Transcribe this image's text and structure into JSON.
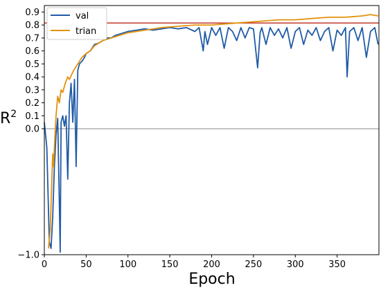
{
  "chart_data": {
    "type": "line",
    "xlabel": "Epoch",
    "ylabel": "R",
    "ylabel_superscript": "2",
    "xlim": [
      0,
      400
    ],
    "ylim": [
      -1.0,
      0.95
    ],
    "x_ticks": [
      0,
      50,
      100,
      150,
      200,
      250,
      300,
      350
    ],
    "y_ticks": [
      -1.0,
      0.0,
      0.1,
      0.2,
      0.3,
      0.4,
      0.5,
      0.6,
      0.7,
      0.8,
      0.9
    ],
    "y_tick_labels": [
      "−1.0",
      "0.0",
      "0.1",
      "0.2",
      "0.3",
      "0.4",
      "0.5",
      "0.6",
      "0.7",
      "0.8",
      "0.9"
    ],
    "grid": false,
    "legend_position": "top-left",
    "reference_lines": [
      {
        "y": 0.0,
        "color": "#b0b0b0"
      },
      {
        "y": 0.815,
        "color": "#c0392b"
      }
    ],
    "series": [
      {
        "name": "val",
        "color": "#1f5aa6",
        "x": [
          0,
          3,
          6,
          8,
          10,
          12,
          14,
          16,
          18,
          19,
          20,
          22,
          24,
          26,
          28,
          30,
          32,
          34,
          36,
          38,
          40,
          42,
          45,
          48,
          50,
          55,
          60,
          65,
          70,
          75,
          80,
          85,
          90,
          95,
          100,
          110,
          120,
          130,
          140,
          150,
          160,
          170,
          180,
          185,
          190,
          192,
          195,
          200,
          205,
          210,
          215,
          220,
          225,
          230,
          235,
          240,
          245,
          250,
          255,
          258,
          260,
          265,
          270,
          275,
          280,
          285,
          290,
          295,
          300,
          305,
          310,
          315,
          320,
          325,
          330,
          335,
          340,
          345,
          350,
          355,
          360,
          362,
          365,
          370,
          375,
          380,
          385,
          390,
          395,
          399
        ],
        "y": [
          0.05,
          -0.15,
          -0.9,
          -0.95,
          -0.7,
          -0.3,
          -0.05,
          0.08,
          -0.6,
          -0.98,
          0.05,
          0.1,
          0.02,
          0.1,
          -0.4,
          0.2,
          0.35,
          0.05,
          0.38,
          -0.3,
          0.45,
          0.5,
          0.52,
          0.55,
          0.58,
          0.6,
          0.65,
          0.66,
          0.68,
          0.7,
          0.7,
          0.72,
          0.73,
          0.74,
          0.75,
          0.76,
          0.77,
          0.76,
          0.77,
          0.78,
          0.77,
          0.78,
          0.75,
          0.78,
          0.6,
          0.75,
          0.65,
          0.78,
          0.72,
          0.78,
          0.62,
          0.78,
          0.75,
          0.68,
          0.78,
          0.7,
          0.78,
          0.77,
          0.47,
          0.74,
          0.78,
          0.65,
          0.78,
          0.72,
          0.77,
          0.7,
          0.78,
          0.62,
          0.75,
          0.78,
          0.65,
          0.76,
          0.72,
          0.78,
          0.68,
          0.75,
          0.78,
          0.6,
          0.76,
          0.72,
          0.78,
          0.4,
          0.75,
          0.78,
          0.68,
          0.78,
          0.55,
          0.75,
          0.78,
          0.65
        ]
      },
      {
        "name": "trian",
        "color": "#e3920b",
        "x": [
          5,
          6,
          7,
          8,
          9,
          10,
          11,
          12,
          14,
          16,
          18,
          20,
          22,
          25,
          28,
          30,
          35,
          40,
          45,
          50,
          55,
          60,
          70,
          80,
          90,
          100,
          120,
          140,
          160,
          180,
          200,
          220,
          240,
          260,
          280,
          300,
          320,
          340,
          360,
          380,
          390,
          399
        ],
        "y": [
          -0.95,
          -0.88,
          -0.8,
          -0.6,
          -0.4,
          -0.2,
          -0.3,
          -0.15,
          0.1,
          0.25,
          0.2,
          0.3,
          0.28,
          0.35,
          0.4,
          0.38,
          0.45,
          0.5,
          0.55,
          0.58,
          0.6,
          0.64,
          0.68,
          0.7,
          0.72,
          0.74,
          0.76,
          0.78,
          0.79,
          0.8,
          0.8,
          0.81,
          0.82,
          0.83,
          0.84,
          0.84,
          0.85,
          0.86,
          0.86,
          0.87,
          0.88,
          0.87
        ]
      }
    ]
  }
}
